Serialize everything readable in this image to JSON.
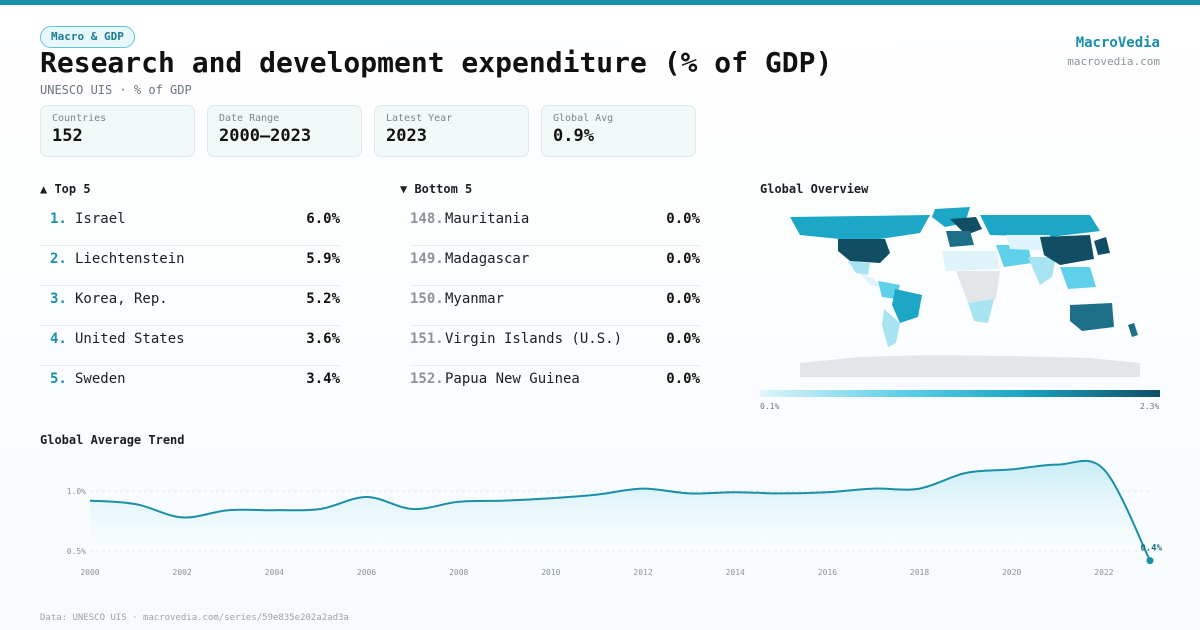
{
  "header": {
    "tag": "Macro & GDP",
    "title": "Research and development expenditure (% of GDP)",
    "subtitle": "UNESCO UIS · % of GDP",
    "brand": "MacroVedia",
    "brand_url": "macrovedia.com"
  },
  "stats": [
    {
      "label": "Countries",
      "value": "152"
    },
    {
      "label": "Date Range",
      "value": "2000–2023"
    },
    {
      "label": "Latest Year",
      "value": "2023"
    },
    {
      "label": "Global Avg",
      "value": "0.9%"
    }
  ],
  "top5": {
    "heading": "▲ Top 5",
    "items": [
      {
        "rank": "1.",
        "name": "Israel",
        "value": "6.0%"
      },
      {
        "rank": "2.",
        "name": "Liechtenstein",
        "value": "5.9%"
      },
      {
        "rank": "3.",
        "name": "Korea, Rep.",
        "value": "5.2%"
      },
      {
        "rank": "4.",
        "name": "United States",
        "value": "3.6%"
      },
      {
        "rank": "5.",
        "name": "Sweden",
        "value": "3.4%"
      }
    ]
  },
  "bottom5": {
    "heading": "▼ Bottom 5",
    "items": [
      {
        "rank": "148.",
        "name": "Mauritania",
        "value": "0.0%"
      },
      {
        "rank": "149.",
        "name": "Madagascar",
        "value": "0.0%"
      },
      {
        "rank": "150.",
        "name": "Myanmar",
        "value": "0.0%"
      },
      {
        "rank": "151.",
        "name": "Virgin Islands (U.S.)",
        "value": "0.0%"
      },
      {
        "rank": "152.",
        "name": "Papua New Guinea",
        "value": "0.0%"
      }
    ]
  },
  "map": {
    "heading": "Global Overview",
    "scale_min": "0.1%",
    "scale_max": "2.3%",
    "colors": {
      "low": "#dff4fa",
      "mid": "#1ba7c5",
      "high": "#114e64",
      "no_data": "#e3e6e9"
    }
  },
  "trend_heading": "Global Average Trend",
  "footer": "Data: UNESCO UIS · macrovedia.com/series/59e835e202a2ad3a",
  "chart_data": {
    "type": "area",
    "title": "Global Average Trend",
    "x": [
      2000,
      2001,
      2002,
      2003,
      2004,
      2005,
      2006,
      2007,
      2008,
      2009,
      2010,
      2011,
      2012,
      2013,
      2014,
      2015,
      2016,
      2017,
      2018,
      2019,
      2020,
      2021,
      2022,
      2023
    ],
    "y": [
      0.92,
      0.89,
      0.78,
      0.84,
      0.84,
      0.85,
      0.95,
      0.85,
      0.91,
      0.92,
      0.94,
      0.97,
      1.02,
      0.98,
      0.99,
      0.98,
      0.99,
      1.02,
      1.02,
      1.15,
      1.18,
      1.22,
      1.18,
      0.42
    ],
    "x_ticks": [
      "2000",
      "2002",
      "2004",
      "2006",
      "2008",
      "2010",
      "2012",
      "2014",
      "2016",
      "2018",
      "2020",
      "2022"
    ],
    "y_ticks": [
      "0.5%",
      "1.0%"
    ],
    "ylim": [
      0.4,
      1.3
    ],
    "end_label": "0.4%",
    "color": "#1a8fa8"
  }
}
